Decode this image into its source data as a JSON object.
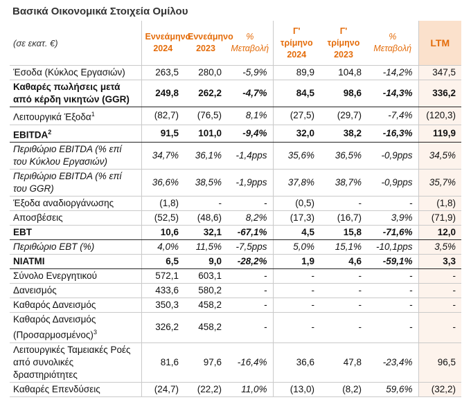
{
  "title": "Βασικά Οικονομικά Στοιχεία Ομίλου",
  "table": {
    "header": [
      "(σε εκατ. €)",
      "Εννεάμηνο 2024",
      "Εννεάμηνο 2023",
      "% Μεταβολή",
      "Γ' τρίμηνο 2024",
      "Γ' τρίμηνο 2023",
      "% Μεταβολή",
      "LTM"
    ],
    "rows": [
      {
        "label": "Έσοδα (Κύκλος Εργασιών)",
        "emphasis": "normal",
        "cells": [
          "263,5",
          "280,0",
          "-5,9%",
          "89,9",
          "104,8",
          "-14,2%",
          "347,5"
        ]
      },
      {
        "label": "Καθαρές πωλήσεις μετά από κέρδη νικητών (GGR)",
        "emphasis": "bold",
        "cells": [
          "249,8",
          "262,2",
          "-4,7%",
          "84,5",
          "98,6",
          "-14,3%",
          "336,2"
        ]
      },
      {
        "label": "Λειτουργικά Έξοδα",
        "note": "1",
        "emphasis": "normal",
        "cells": [
          "(82,7)",
          "(76,5)",
          "8,1%",
          "(27,5)",
          "(29,7)",
          "-7,4%",
          "(120,3)"
        ]
      },
      {
        "label": "EBITDA",
        "note": "2",
        "emphasis": "bold",
        "cells": [
          "91,5",
          "101,0",
          "-9,4%",
          "32,0",
          "38,2",
          "-16,3%",
          "119,9"
        ]
      },
      {
        "label": "Περιθώριο EBITDA (% επί του Κύκλου Εργασιών)",
        "emphasis": "italic",
        "cells": [
          "34,7%",
          "36,1%",
          "-1,4pps",
          "35,6%",
          "36,5%",
          "-0,9pps",
          "34,5%"
        ]
      },
      {
        "label": "Περιθώριο EBITDA (% επί του GGR)",
        "emphasis": "italic",
        "cells": [
          "36,6%",
          "38,5%",
          "-1,9pps",
          "37,8%",
          "38,7%",
          "-0,9pps",
          "35,7%"
        ]
      },
      {
        "label": "Έξοδα αναδιοργάνωσης",
        "emphasis": "normal",
        "cells": [
          "(1,8)",
          "-",
          "-",
          "(0,5)",
          "-",
          "-",
          "(1,8)"
        ]
      },
      {
        "label": "Αποσβέσεις",
        "emphasis": "normal",
        "cells": [
          "(52,5)",
          "(48,6)",
          "8,2%",
          "(17,3)",
          "(16,7)",
          "3,9%",
          "(71,9)"
        ]
      },
      {
        "label": "EBT",
        "emphasis": "bold",
        "cells": [
          "10,6",
          "32,1",
          "-67,1%",
          "4,5",
          "15,8",
          "-71,6%",
          "12,0"
        ]
      },
      {
        "label": "Περιθώριο EBT (%)",
        "emphasis": "italic",
        "cells": [
          "4,0%",
          "11,5%",
          "-7,5pps",
          "5,0%",
          "15,1%",
          "-10,1pps",
          "3,5%"
        ]
      },
      {
        "label": "NIATMI",
        "emphasis": "bold",
        "cells": [
          "6,5",
          "9,0",
          "-28,2%",
          "1,9",
          "4,6",
          "-59,1%",
          "3,3"
        ]
      },
      {
        "label": "Σύνολο Ενεργητικού",
        "emphasis": "normal",
        "cells": [
          "572,1",
          "603,1",
          "-",
          "-",
          "-",
          "-",
          "-"
        ]
      },
      {
        "label": "Δανεισμός",
        "emphasis": "normal",
        "cells": [
          "433,6",
          "580,2",
          "-",
          "-",
          "-",
          "-",
          "-"
        ]
      },
      {
        "label": "Καθαρός Δανεισμός",
        "emphasis": "normal",
        "cells": [
          "350,3",
          "458,2",
          "-",
          "-",
          "-",
          "-",
          "-"
        ]
      },
      {
        "label": "Καθαρός Δανεισμός (Προσαρμοσμένος)",
        "note": "3",
        "emphasis": "normal",
        "cells": [
          "326,2",
          "458,2",
          "-",
          "-",
          "-",
          "-",
          "-"
        ]
      },
      {
        "label": "Λειτουργικές Ταμειακές Ροές από συνολικές δραστηριότητες",
        "emphasis": "normal",
        "cells": [
          "81,6",
          "97,6",
          "-16,4%",
          "36,6",
          "47,8",
          "-23,4%",
          "96,5"
        ]
      },
      {
        "label": "Καθαρές Επενδύσεις",
        "emphasis": "normal",
        "cells": [
          "(24,7)",
          "(22,2)",
          "11,0%",
          "(13,0)",
          "(8,2)",
          "59,6%",
          "(32,2)"
        ]
      }
    ]
  }
}
